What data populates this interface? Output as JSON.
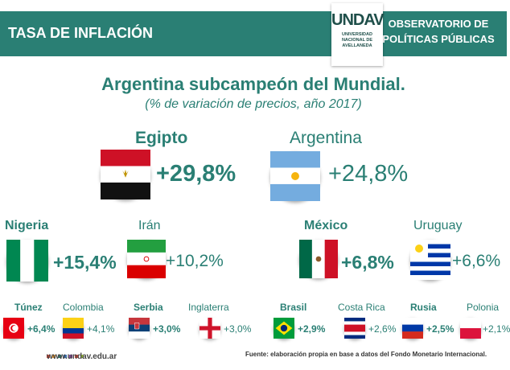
{
  "header": {
    "left_title": "TASA DE INFLACIÓN",
    "right_title_line1": "OBSERVATORIO DE",
    "right_title_line2": "POLÍTICAS PÚBLICAS",
    "logo_word": "UNDAV",
    "logo_line1": "UNIVERSIDAD",
    "logo_line2": "NACIONAL DE",
    "logo_line3": "AVELLANEDA"
  },
  "title": "Argentina subcampeón del Mundial.",
  "subtitle": "(% de variación de precios, año 2017)",
  "chart_data": {
    "type": "table",
    "title": "Argentina subcampeón del Mundial.",
    "subtitle": "(% de variación de precios, año 2017)",
    "unit": "%",
    "rows": [
      {
        "country": "Egipto",
        "value": 29.8,
        "label": "+29,8%"
      },
      {
        "country": "Argentina",
        "value": 24.8,
        "label": "+24,8%"
      },
      {
        "country": "Nigeria",
        "value": 15.4,
        "label": "+15,4%"
      },
      {
        "country": "Irán",
        "value": 10.2,
        "label": "+10,2%"
      },
      {
        "country": "México",
        "value": 6.8,
        "label": "+6,8%"
      },
      {
        "country": "Uruguay",
        "value": 6.6,
        "label": "+6,6%"
      },
      {
        "country": "Túnez",
        "value": 6.4,
        "label": "+6,4%"
      },
      {
        "country": "Colombia",
        "value": 4.1,
        "label": "+4,1%"
      },
      {
        "country": "Serbia",
        "value": 3.0,
        "label": "+3,0%"
      },
      {
        "country": "Inglaterra",
        "value": 3.0,
        "label": "+3,0%"
      },
      {
        "country": "Brasil",
        "value": 2.9,
        "label": "+2,9%"
      },
      {
        "country": "Costa Rica",
        "value": 2.6,
        "label": "+2,6%"
      },
      {
        "country": "Rusia",
        "value": 2.5,
        "label": "+2,5%"
      },
      {
        "country": "Polonia",
        "value": 2.1,
        "label": "+2,1%"
      }
    ]
  },
  "footer": {
    "url": "www.undav.edu.ar",
    "source": "Fuente: elaboración propia en base a datos del Fondo Monetario Internacional."
  },
  "colors": {
    "teal": "#2a7f74",
    "dark_teal": "#1f4f4a"
  }
}
